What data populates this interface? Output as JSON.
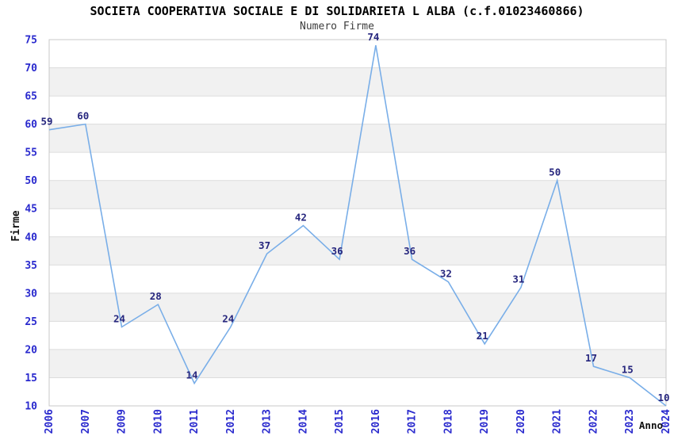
{
  "page": {
    "title": "SOCIETA COOPERATIVA SOCIALE E DI SOLIDARIETA L ALBA (c.f.01023460866)",
    "subtitle": "Numero Firme"
  },
  "chart_data": {
    "type": "line",
    "title": "SOCIETA COOPERATIVA SOCIALE E DI SOLIDARIETA L ALBA (c.f.01023460866)",
    "subtitle": "Numero Firme",
    "xlabel": "Anno",
    "ylabel": "Firme",
    "categories": [
      "2006",
      "2007",
      "2009",
      "2010",
      "2011",
      "2012",
      "2013",
      "2014",
      "2015",
      "2016",
      "2017",
      "2018",
      "2019",
      "2020",
      "2021",
      "2022",
      "2023",
      "2024"
    ],
    "values": [
      59,
      60,
      24,
      28,
      14,
      24,
      37,
      42,
      36,
      74,
      36,
      32,
      21,
      31,
      50,
      17,
      15,
      10
    ],
    "ylim": [
      10,
      75
    ],
    "ytick_step": 5,
    "yticks": [
      10,
      15,
      20,
      25,
      30,
      35,
      40,
      45,
      50,
      55,
      60,
      65,
      70,
      75
    ],
    "grid": true,
    "band_fill": "alternating horizontal bands of 5 units, gray when lower edge ends in 5",
    "legend": "none",
    "markers": "none, value labels above each vertex",
    "colors": {
      "line": "#79aee8",
      "tick_label": "#2a2ace",
      "data_label": "#26267e",
      "band": "#f1f1f1",
      "gridline": "#dcdcdc",
      "border": "#c8c8c8",
      "title": "#000000",
      "subtitle": "#3d3d3d",
      "axis_title": "#111111",
      "background": "#ffffff"
    }
  }
}
